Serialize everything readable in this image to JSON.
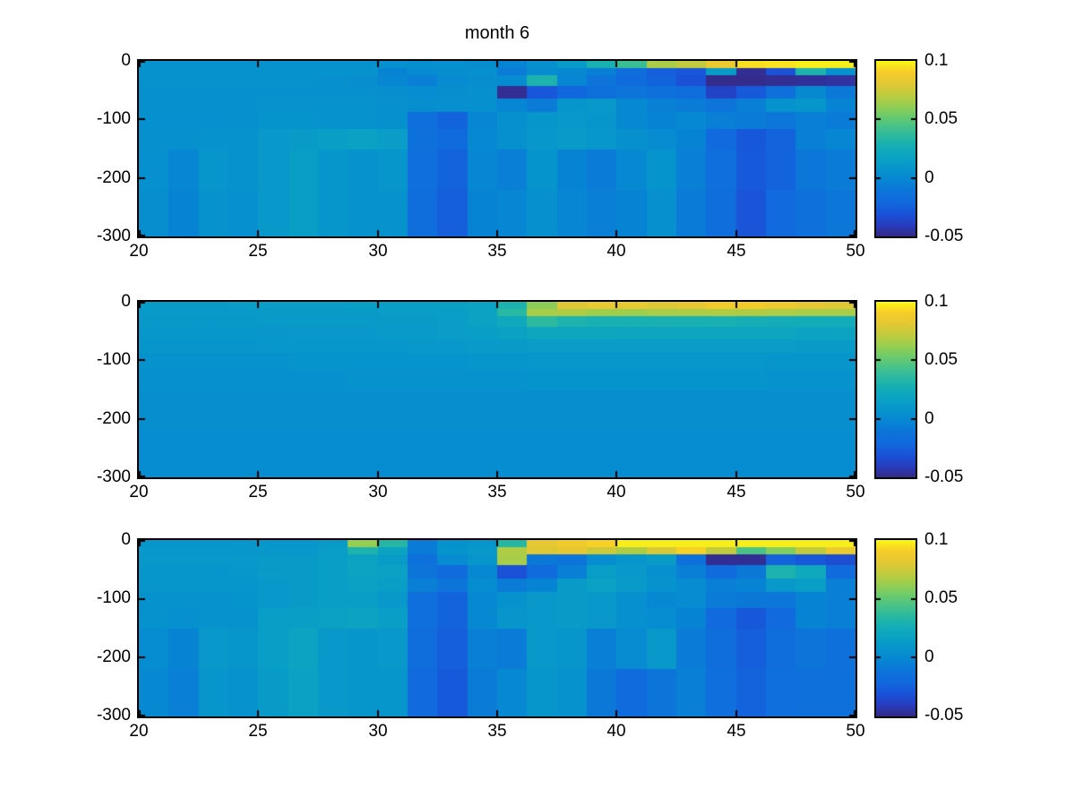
{
  "figure": {
    "title": "month 6",
    "background": "#ffffff"
  },
  "axes": {
    "x_ticks": [
      "20",
      "25",
      "30",
      "35",
      "40",
      "45",
      "50"
    ],
    "x_tick_values": [
      20,
      25,
      30,
      35,
      40,
      45,
      50
    ],
    "y_ticks": [
      "0",
      "-100",
      "-200",
      "-300"
    ],
    "y_tick_values": [
      0,
      -100,
      -200,
      -300
    ],
    "x_range": [
      20,
      50
    ],
    "depth_range": [
      0,
      -300
    ]
  },
  "colorbar": {
    "tick_labels": [
      "0.1",
      "0.05",
      "0",
      "-0.05"
    ],
    "tick_values": [
      0.1,
      0.05,
      0,
      -0.05
    ],
    "min": -0.05,
    "max": 0.1,
    "colormap": "parula"
  },
  "colormap": {
    "stops": [
      [
        0.0,
        53,
        42,
        135
      ],
      [
        0.06,
        40,
        60,
        190
      ],
      [
        0.125,
        25,
        83,
        217
      ],
      [
        0.19,
        17,
        105,
        222
      ],
      [
        0.25,
        13,
        115,
        218
      ],
      [
        0.31,
        7,
        132,
        212
      ],
      [
        0.375,
        6,
        147,
        205
      ],
      [
        0.44,
        10,
        161,
        196
      ],
      [
        0.5,
        18,
        172,
        185
      ],
      [
        0.56,
        38,
        183,
        164
      ],
      [
        0.625,
        70,
        194,
        138
      ],
      [
        0.69,
        110,
        203,
        107
      ],
      [
        0.75,
        152,
        206,
        80
      ],
      [
        0.81,
        192,
        203,
        62
      ],
      [
        0.875,
        227,
        200,
        52
      ],
      [
        0.94,
        247,
        205,
        40
      ],
      [
        0.97,
        249,
        225,
        32
      ],
      [
        1.0,
        248,
        248,
        19
      ]
    ]
  },
  "chart_data": [
    {
      "type": "heatmap",
      "subplot": "top",
      "title": "month 6",
      "x_min": 20,
      "x_max": 50,
      "columns": 24,
      "depth_edges": [
        0,
        12,
        25,
        43,
        65,
        88,
        116,
        151,
        220,
        300
      ],
      "clim": [
        -0.05,
        0.1
      ],
      "values": [
        [
          0.006,
          0.006,
          0.006,
          0.006,
          0.006,
          0.006,
          0.006,
          0.006,
          0.004,
          0.003,
          0.004,
          0.003,
          -0.004,
          0.005,
          0.012,
          0.028,
          0.04,
          0.067,
          0.072,
          0.085,
          0.095,
          0.096,
          0.098,
          0.098
        ],
        [
          0.006,
          0.006,
          0.006,
          0.006,
          0.006,
          0.006,
          0.006,
          0.006,
          -0.004,
          0.001,
          0.003,
          0.004,
          -0.008,
          0.002,
          0.0,
          -0.006,
          -0.018,
          -0.026,
          -0.03,
          0.012,
          -0.048,
          -0.032,
          0.03,
          0.004
        ],
        [
          0.006,
          0.006,
          0.006,
          0.006,
          0.006,
          0.006,
          0.005,
          0.003,
          -0.002,
          -0.006,
          0.001,
          0.003,
          0.002,
          0.03,
          -0.002,
          -0.012,
          -0.02,
          -0.024,
          -0.032,
          -0.049,
          -0.049,
          -0.048,
          -0.047,
          -0.046
        ],
        [
          0.005,
          0.005,
          0.005,
          0.005,
          0.005,
          0.005,
          0.005,
          0.005,
          0.003,
          0.002,
          0.003,
          0.005,
          -0.048,
          -0.03,
          -0.022,
          -0.015,
          -0.012,
          -0.015,
          -0.018,
          -0.038,
          -0.028,
          -0.015,
          0.0,
          -0.01
        ],
        [
          0.005,
          0.005,
          0.005,
          0.005,
          0.006,
          0.006,
          0.006,
          0.006,
          0.005,
          0.003,
          0.004,
          0.004,
          -0.002,
          -0.008,
          0.008,
          0.01,
          0.0,
          -0.005,
          -0.008,
          -0.012,
          -0.006,
          0.006,
          0.008,
          -0.004
        ],
        [
          0.004,
          0.004,
          0.004,
          0.005,
          0.007,
          0.007,
          0.006,
          0.006,
          0.005,
          -0.016,
          -0.024,
          -0.002,
          0.005,
          0.008,
          0.01,
          0.008,
          0.0,
          -0.004,
          0.0,
          -0.006,
          -0.008,
          -0.011,
          -0.006,
          -0.008
        ],
        [
          0.005,
          0.005,
          0.006,
          0.006,
          0.01,
          0.012,
          0.014,
          0.016,
          0.013,
          -0.014,
          -0.02,
          0.0,
          0.005,
          0.009,
          0.011,
          0.009,
          0.005,
          0.001,
          -0.004,
          -0.021,
          -0.029,
          -0.024,
          -0.006,
          -0.002
        ],
        [
          0.004,
          -0.002,
          0.008,
          0.006,
          0.01,
          0.014,
          0.008,
          0.006,
          0.008,
          -0.016,
          -0.024,
          -0.002,
          -0.006,
          0.007,
          -0.004,
          -0.008,
          0.0,
          0.007,
          -0.006,
          -0.016,
          -0.028,
          -0.024,
          -0.011,
          -0.008
        ],
        [
          0.003,
          -0.004,
          0.006,
          0.004,
          0.01,
          0.014,
          0.008,
          0.006,
          0.006,
          -0.018,
          -0.026,
          -0.004,
          -0.002,
          0.005,
          -0.002,
          -0.006,
          -0.004,
          0.005,
          -0.008,
          -0.018,
          -0.031,
          -0.021,
          -0.014,
          -0.011
        ]
      ]
    },
    {
      "type": "heatmap",
      "subplot": "middle",
      "title": "",
      "x_min": 20,
      "x_max": 50,
      "columns": 24,
      "depth_edges": [
        0,
        12,
        25,
        43,
        65,
        88,
        116,
        151,
        220,
        300
      ],
      "clim": [
        -0.05,
        0.1
      ],
      "values": [
        [
          0.012,
          0.012,
          0.012,
          0.013,
          0.013,
          0.013,
          0.013,
          0.014,
          0.014,
          0.014,
          0.015,
          0.017,
          0.03,
          0.06,
          0.08,
          0.084,
          0.083,
          0.08,
          0.082,
          0.088,
          0.089,
          0.086,
          0.082,
          0.08
        ],
        [
          0.011,
          0.011,
          0.011,
          0.011,
          0.012,
          0.012,
          0.012,
          0.012,
          0.013,
          0.013,
          0.014,
          0.017,
          0.035,
          0.066,
          0.068,
          0.064,
          0.064,
          0.066,
          0.067,
          0.068,
          0.068,
          0.067,
          0.066,
          0.066
        ],
        [
          0.01,
          0.01,
          0.01,
          0.01,
          0.011,
          0.011,
          0.011,
          0.011,
          0.012,
          0.012,
          0.013,
          0.017,
          0.022,
          0.036,
          0.03,
          0.028,
          0.028,
          0.028,
          0.028,
          0.028,
          0.027,
          0.026,
          0.025,
          0.024
        ],
        [
          0.009,
          0.009,
          0.009,
          0.009,
          0.009,
          0.01,
          0.01,
          0.01,
          0.011,
          0.011,
          0.013,
          0.014,
          0.016,
          0.02,
          0.02,
          0.02,
          0.019,
          0.019,
          0.019,
          0.019,
          0.019,
          0.019,
          0.018,
          0.018
        ],
        [
          0.008,
          0.008,
          0.008,
          0.008,
          0.009,
          0.009,
          0.009,
          0.009,
          0.009,
          0.01,
          0.01,
          0.011,
          0.012,
          0.013,
          0.013,
          0.013,
          0.013,
          0.013,
          0.013,
          0.013,
          0.013,
          0.013,
          0.012,
          0.012
        ],
        [
          0.006,
          0.006,
          0.006,
          0.006,
          0.006,
          0.007,
          0.007,
          0.007,
          0.007,
          0.007,
          0.007,
          0.008,
          0.008,
          0.009,
          0.009,
          0.009,
          0.009,
          0.009,
          0.009,
          0.009,
          0.009,
          0.008,
          0.008,
          0.008
        ],
        [
          0.005,
          0.005,
          0.005,
          0.005,
          0.005,
          0.005,
          0.005,
          0.006,
          0.006,
          0.006,
          0.006,
          0.006,
          0.006,
          0.007,
          0.007,
          0.007,
          0.007,
          0.007,
          0.007,
          0.007,
          0.007,
          0.006,
          0.006,
          0.006
        ],
        [
          0.003,
          0.003,
          0.003,
          0.003,
          0.003,
          0.003,
          0.003,
          0.003,
          0.003,
          0.003,
          0.003,
          0.003,
          0.003,
          0.003,
          0.003,
          0.003,
          0.003,
          0.003,
          0.003,
          0.003,
          0.003,
          0.003,
          0.003,
          0.003
        ],
        [
          0.002,
          0.002,
          0.002,
          0.002,
          0.002,
          0.002,
          0.002,
          0.002,
          0.002,
          0.002,
          0.002,
          0.002,
          0.002,
          0.002,
          0.002,
          0.002,
          0.002,
          0.002,
          0.002,
          0.002,
          0.002,
          0.002,
          0.002,
          0.002
        ]
      ]
    },
    {
      "type": "heatmap",
      "subplot": "bottom",
      "title": "",
      "x_min": 20,
      "x_max": 50,
      "columns": 24,
      "depth_edges": [
        0,
        12,
        25,
        43,
        65,
        88,
        116,
        151,
        220,
        300
      ],
      "clim": [
        -0.05,
        0.1
      ],
      "values": [
        [
          0.008,
          0.008,
          0.008,
          0.009,
          0.009,
          0.009,
          0.012,
          0.062,
          0.034,
          -0.008,
          0.006,
          0.008,
          0.034,
          0.082,
          0.088,
          0.092,
          0.098,
          0.098,
          0.098,
          0.098,
          0.098,
          0.098,
          0.098,
          0.098
        ],
        [
          0.009,
          0.009,
          0.009,
          0.009,
          0.01,
          0.01,
          0.013,
          0.03,
          0.018,
          -0.008,
          0.007,
          0.01,
          0.068,
          0.08,
          0.082,
          0.075,
          0.068,
          0.078,
          0.092,
          0.072,
          0.045,
          0.058,
          0.072,
          0.085
        ],
        [
          0.01,
          0.01,
          0.01,
          0.01,
          0.011,
          0.012,
          0.014,
          0.018,
          0.012,
          -0.014,
          0.001,
          0.008,
          0.066,
          -0.01,
          -0.012,
          0.002,
          0.008,
          0.012,
          -0.015,
          -0.048,
          -0.048,
          -0.025,
          -0.03,
          -0.034
        ],
        [
          0.008,
          0.008,
          0.008,
          0.009,
          0.012,
          0.012,
          0.014,
          0.018,
          0.016,
          -0.012,
          -0.02,
          0.0,
          -0.032,
          -0.02,
          -0.006,
          0.014,
          0.01,
          0.004,
          -0.006,
          -0.02,
          -0.01,
          0.03,
          0.022,
          -0.02
        ],
        [
          0.008,
          0.008,
          0.008,
          0.008,
          0.01,
          0.012,
          0.014,
          0.016,
          0.014,
          -0.006,
          -0.012,
          0.002,
          -0.008,
          -0.004,
          0.012,
          0.016,
          0.011,
          0.006,
          0.001,
          -0.006,
          -0.004,
          0.01,
          0.014,
          -0.006
        ],
        [
          0.006,
          0.006,
          0.006,
          0.007,
          0.01,
          0.012,
          0.014,
          0.014,
          0.01,
          -0.016,
          -0.024,
          0.0,
          0.006,
          0.01,
          0.012,
          0.01,
          0.004,
          0.0,
          0.001,
          -0.008,
          -0.01,
          -0.011,
          -0.004,
          -0.006
        ],
        [
          0.006,
          0.004,
          0.006,
          0.006,
          0.014,
          0.014,
          0.016,
          0.018,
          0.014,
          -0.016,
          -0.024,
          0.0,
          0.008,
          0.01,
          0.012,
          0.01,
          0.004,
          0.002,
          -0.004,
          -0.021,
          -0.029,
          -0.021,
          -0.004,
          -0.006
        ],
        [
          0.002,
          -0.004,
          0.01,
          0.008,
          0.014,
          0.018,
          0.01,
          0.008,
          0.01,
          -0.018,
          -0.026,
          -0.006,
          -0.008,
          0.01,
          0.008,
          -0.006,
          0.001,
          0.01,
          -0.008,
          -0.018,
          -0.026,
          -0.018,
          -0.012,
          -0.014
        ],
        [
          0.0,
          -0.006,
          0.008,
          0.006,
          0.012,
          0.016,
          0.01,
          0.008,
          0.008,
          -0.021,
          -0.028,
          -0.008,
          -0.001,
          0.008,
          0.006,
          -0.01,
          -0.02,
          -0.012,
          -0.006,
          -0.016,
          -0.024,
          -0.016,
          -0.014,
          -0.015
        ]
      ]
    }
  ]
}
